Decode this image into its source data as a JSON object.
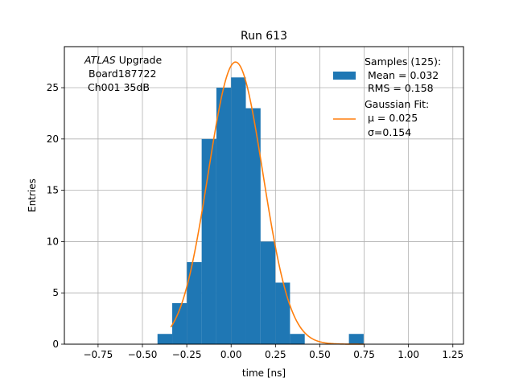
{
  "chart_data": {
    "type": "bar",
    "title": "Run 613",
    "xlabel": "time [ns]",
    "ylabel": "Entries",
    "xlim": [
      -0.94,
      1.31
    ],
    "ylim": [
      0,
      29
    ],
    "xticks": [
      -0.75,
      -0.5,
      -0.25,
      0.0,
      0.25,
      0.5,
      0.75,
      1.0,
      1.25
    ],
    "xtick_labels": [
      "−0.75",
      "−0.50",
      "−0.25",
      "0.00",
      "0.25",
      "0.50",
      "0.75",
      "1.00",
      "1.25"
    ],
    "yticks": [
      0,
      5,
      10,
      15,
      20,
      25
    ],
    "grid": true,
    "histogram": {
      "name": "Samples (125):",
      "color": "#1f77b4",
      "bin_edges": [
        -0.415,
        -0.332,
        -0.249,
        -0.166,
        -0.083,
        0.0,
        0.083,
        0.166,
        0.249,
        0.332,
        0.415,
        0.498,
        0.581,
        0.664,
        0.747
      ],
      "counts": [
        1,
        4,
        8,
        20,
        25,
        26,
        23,
        10,
        6,
        1,
        0,
        0,
        0,
        1
      ]
    },
    "fit": {
      "name": "Gaussian Fit:",
      "color": "#ff7f0e",
      "mu": 0.025,
      "sigma": 0.154,
      "amplitude": 27.5,
      "x_range": [
        -0.34,
        0.75
      ]
    },
    "annotation": {
      "italic": "ATLAS",
      "rest": " Upgrade",
      "line2": "Board187722",
      "line3": "Ch001 35dB"
    },
    "legend": {
      "position": "top-right",
      "hist_lines": [
        "Samples (125):",
        "Mean = 0.032",
        "RMS = 0.158"
      ],
      "fit_title": "Gaussian Fit:",
      "fit_mu": "μ = 0.025",
      "fit_sigma": "σ=0.154"
    }
  }
}
